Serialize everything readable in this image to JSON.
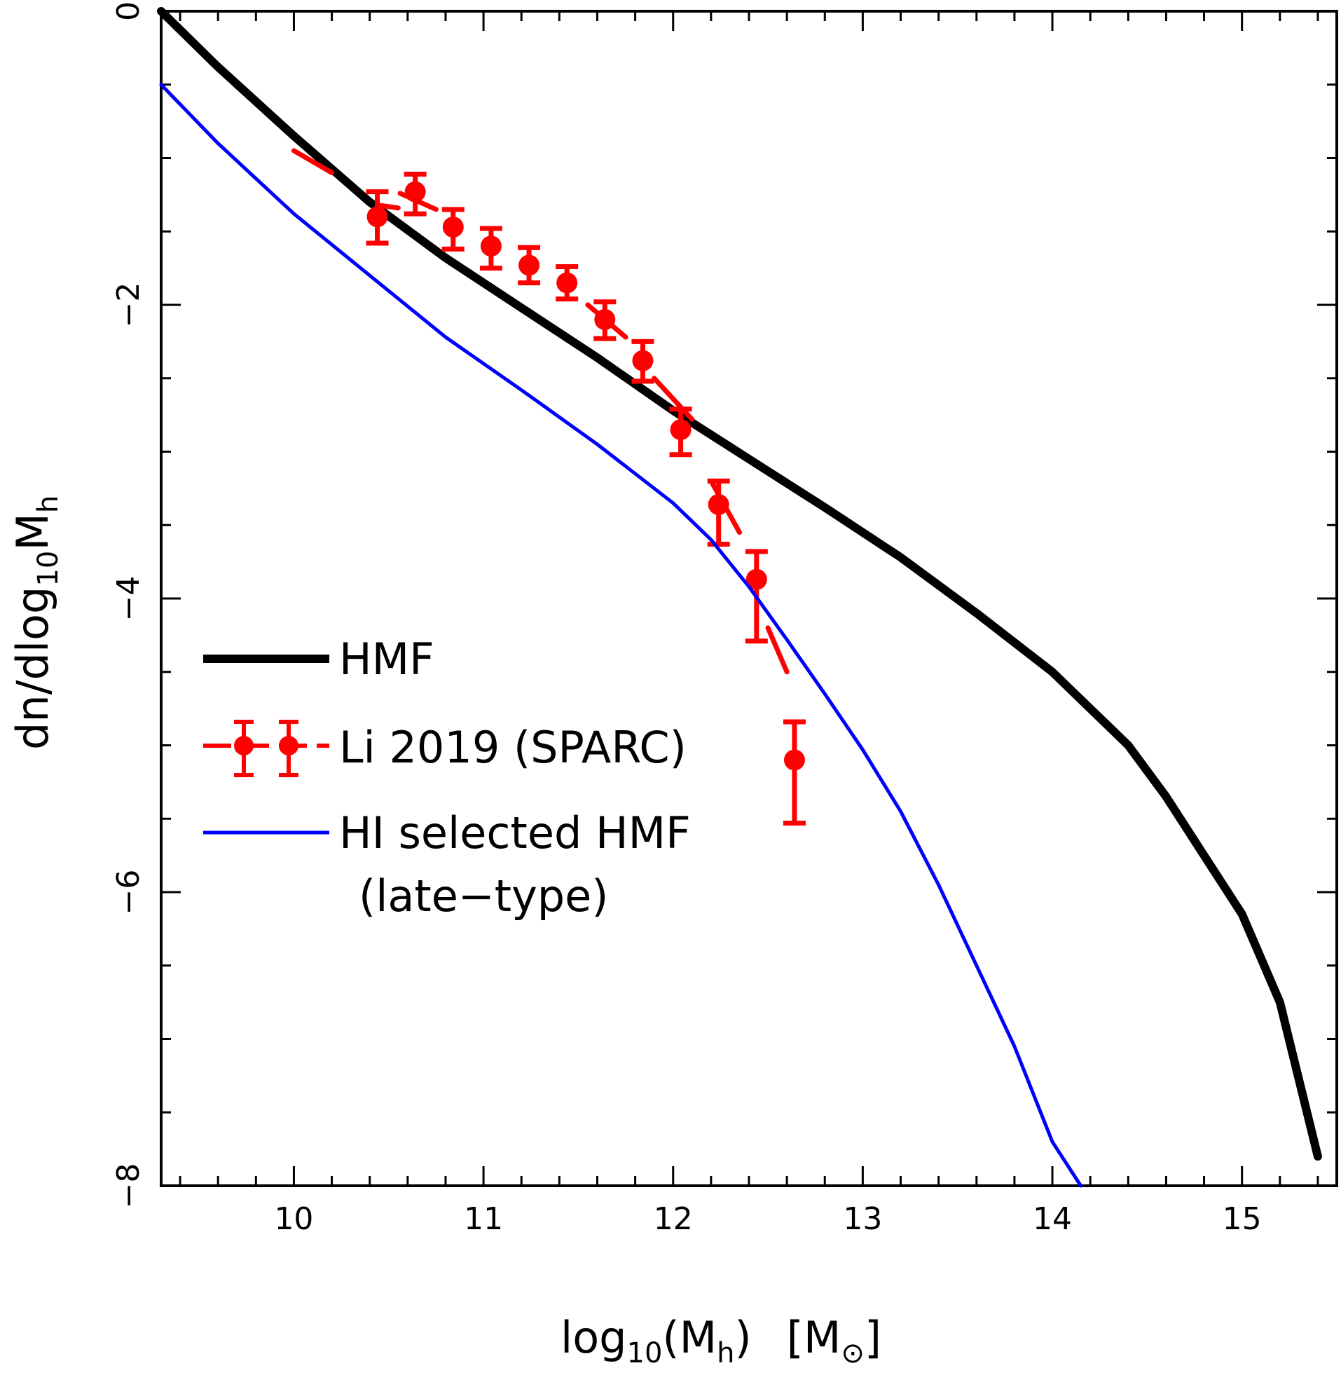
{
  "chart_data": {
    "type": "line",
    "title": "",
    "xlabel": {
      "base": "log",
      "sub": "10",
      "paren": "(M",
      "sub2": "h",
      "close": ")",
      "unit_open": "[M",
      "unit_sym": "⊙",
      "unit_close": "]"
    },
    "ylabel": {
      "base": "dn/dlog",
      "sub": "10",
      "mid": "M",
      "sub2": "h"
    },
    "xlim": [
      9.3,
      15.5
    ],
    "ylim": [
      -8,
      0
    ],
    "xticks": [
      10,
      11,
      12,
      13,
      14,
      15
    ],
    "xtick_labels": [
      "10",
      "11",
      "12",
      "13",
      "14",
      "15"
    ],
    "yticks": [
      0,
      -2,
      -4,
      -6,
      -8
    ],
    "ytick_labels": [
      "0",
      "−2",
      "−4",
      "−6",
      "−8"
    ],
    "series": [
      {
        "name": "HMF",
        "style": "thick-solid",
        "color": "#000000",
        "x": [
          9.3,
          9.6,
          10.0,
          10.4,
          10.8,
          11.2,
          11.6,
          12.0,
          12.4,
          12.8,
          13.2,
          13.6,
          14.0,
          14.4,
          14.6,
          14.8,
          15.0,
          15.2,
          15.4
        ],
        "y": [
          0.0,
          -0.38,
          -0.85,
          -1.3,
          -1.68,
          -2.02,
          -2.36,
          -2.72,
          -3.05,
          -3.38,
          -3.72,
          -4.1,
          -4.5,
          -5.0,
          -5.35,
          -5.75,
          -6.15,
          -6.75,
          -7.8
        ]
      },
      {
        "name": "Li 2019 (SPARC)",
        "style": "dashed-errorbars",
        "color": "#ff0000",
        "x": [
          10.44,
          10.64,
          10.84,
          11.04,
          11.24,
          11.44,
          11.64,
          11.84,
          12.04,
          12.24,
          12.44,
          12.64
        ],
        "y": [
          -1.4,
          -1.23,
          -1.47,
          -1.6,
          -1.73,
          -1.85,
          -2.1,
          -2.38,
          -2.85,
          -3.36,
          -3.87,
          -5.1
        ],
        "err_up": [
          0.17,
          0.12,
          0.12,
          0.12,
          0.12,
          0.11,
          0.12,
          0.13,
          0.14,
          0.16,
          0.19,
          0.26
        ],
        "err_dn": [
          0.18,
          0.15,
          0.15,
          0.15,
          0.12,
          0.11,
          0.13,
          0.14,
          0.17,
          0.27,
          0.42,
          0.43
        ],
        "dash_segments": [
          [
            [
              10.0,
              -0.95
            ],
            [
              10.2,
              -1.1
            ]
          ],
          [
            [
              10.44,
              -1.32
            ],
            [
              10.55,
              -1.34
            ]
          ],
          [
            [
              10.56,
              -1.24
            ],
            [
              10.75,
              -1.35
            ]
          ],
          [
            [
              11.55,
              -2.0
            ],
            [
              11.75,
              -2.22
            ]
          ],
          [
            [
              11.9,
              -2.5
            ],
            [
              12.1,
              -2.78
            ]
          ],
          [
            [
              12.2,
              -3.2
            ],
            [
              12.35,
              -3.55
            ]
          ],
          [
            [
              12.5,
              -4.2
            ],
            [
              12.6,
              -4.5
            ]
          ]
        ]
      },
      {
        "name": "HI selected HMF (late-type)",
        "style": "thin-solid",
        "color": "#0000ff",
        "x": [
          9.3,
          9.6,
          10.0,
          10.4,
          10.8,
          11.2,
          11.6,
          12.0,
          12.2,
          12.4,
          12.6,
          12.8,
          13.0,
          13.2,
          13.4,
          13.6,
          13.8,
          14.0,
          14.15
        ],
        "y": [
          -0.5,
          -0.9,
          -1.38,
          -1.8,
          -2.22,
          -2.58,
          -2.95,
          -3.35,
          -3.6,
          -3.92,
          -4.28,
          -4.65,
          -5.03,
          -5.45,
          -5.95,
          -6.5,
          -7.05,
          -7.7,
          -8.0
        ]
      }
    ],
    "legend": {
      "placement": "left-middle",
      "entries": [
        "HMF",
        "Li 2019 (SPARC)",
        "HI selected HMF",
        "(late−type)"
      ]
    }
  }
}
